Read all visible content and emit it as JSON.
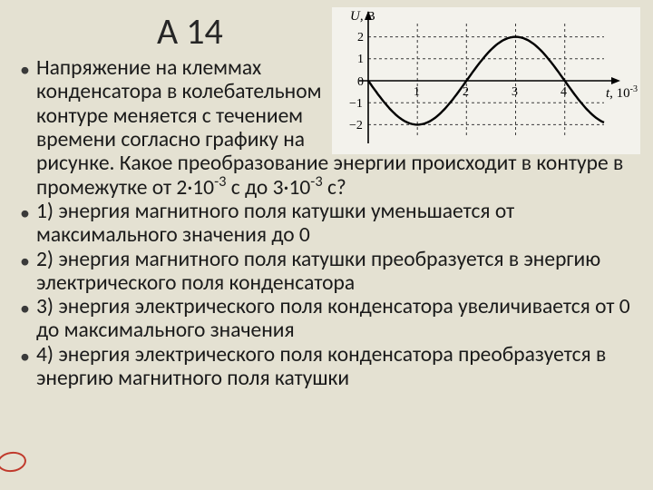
{
  "title": "А 14",
  "graph": {
    "type": "line",
    "background_color": "#f3f2ec",
    "grid_color": "#3a3a3a",
    "grid_dash": "3 3",
    "axis_color": "#000000",
    "curve_color": "#000000",
    "curve_width": 2.4,
    "y_axis_label": "U",
    "y_axis_unit": "В",
    "x_axis_label": "t",
    "x_axis_unit_prefix": "10",
    "x_axis_unit_exp": "-3",
    "x_axis_unit_suffix": "с",
    "x_ticks": [
      1,
      2,
      3,
      4
    ],
    "y_ticks": [
      -2,
      -1,
      0,
      1,
      2
    ],
    "xlim": [
      0,
      4.8
    ],
    "ylim": [
      -2.6,
      2.6
    ],
    "amplitude": 2,
    "period": 4,
    "phase_shift": 0,
    "curve_formula": "U = -2*sin(2*pi*t/4)"
  },
  "bullets": [
    {
      "text_html": "Напряжение на клеммах конденсатора в колебательном контуре меняется с течением времени согласно графику на рисунке. Какое преобразование энергии происходит в контуре в промежутке от 2·10<sup>-3</sup> с до 3·10<sup>-3</sup> с?",
      "wrap_narrow_lines": 5
    },
    {
      "text_html": "1) энергия магнитного поля катушки уменьшается от максимального значения до 0"
    },
    {
      "text_html": "2) энергия магнитного поля катушки преобразуется в энергию электрического поля конденсатора"
    },
    {
      "text_html": "3) энергия электрического поля конденсатора увеличивается от 0 до максимального значения"
    },
    {
      "text_html": "4) энергия электрического поля конденсатора преобразуется в энергию магнитного поля катушки",
      "circled": true
    }
  ],
  "colors": {
    "page_bg": "#e4e1d2",
    "text": "#1a1a1a",
    "circle_mark": "#c0392b"
  }
}
